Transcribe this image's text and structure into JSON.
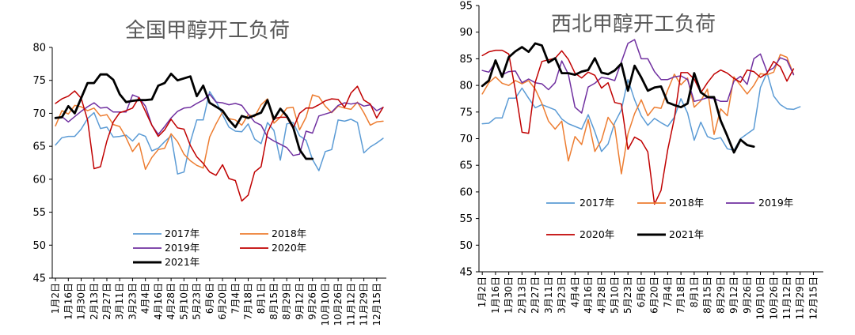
{
  "chart_data": [
    {
      "type": "line",
      "title": "全国甲醇开工负荷",
      "xlabel": "",
      "ylabel": "",
      "ylim": [
        45,
        80
      ],
      "yticks": [
        45,
        50,
        55,
        60,
        65,
        70,
        75,
        80
      ],
      "x_tick_labels": [
        "1月2日",
        "1月16日",
        "1月30日",
        "2月13日",
        "2月27日",
        "3月11日",
        "3月23日",
        "4月4日",
        "4月16日",
        "4月28日",
        "5月10日",
        "5月23日",
        "6月6日",
        "6月20日",
        "7月4日",
        "7月18日",
        "8月1日",
        "8月15日",
        "8月29日",
        "9月12日",
        "9月26日",
        "10月10日",
        "10月26日",
        "11月12日",
        "11月29日",
        "12月15日"
      ],
      "n_points": 52,
      "grid": false,
      "legend": "bottom-center",
      "series": [
        {
          "name": "2017年",
          "color": "#5b9bd5",
          "width": 1.5,
          "values": [
            65.2,
            66.3,
            66.5,
            66.5,
            67.6,
            69.2,
            70.1,
            67.7,
            67.9,
            66.4,
            66.5,
            66.7,
            65.8,
            66.9,
            66.5,
            64.3,
            64.7,
            65.7,
            66.6,
            60.8,
            61.1,
            65.7,
            69.0,
            69.0,
            73.3,
            71.8,
            69.8,
            67.9,
            67.3,
            67.2,
            68.4,
            66.1,
            65.4,
            68.6,
            67.4,
            62.9,
            68.4,
            68.6,
            66.6,
            65.9,
            63.0,
            61.3,
            64.2,
            64.5,
            69.0,
            68.8,
            69.1,
            68.6,
            64.0,
            64.9,
            65.5,
            66.2
          ]
        },
        {
          "name": "2018年",
          "color": "#ed7d31",
          "width": 1.5,
          "values": [
            68.1,
            70.4,
            69.9,
            71.2,
            71.0,
            70.4,
            70.8,
            69.6,
            69.8,
            68.3,
            68.0,
            66.3,
            64.2,
            65.5,
            61.5,
            63.3,
            64.5,
            64.7,
            66.9,
            65.7,
            63.8,
            62.8,
            62.1,
            61.7,
            66.4,
            68.4,
            70.2,
            69.2,
            69.0,
            68.2,
            69.8,
            69.5,
            71.3,
            72.2,
            68.5,
            69.4,
            70.8,
            70.9,
            67.5,
            69.4,
            72.8,
            72.5,
            71.1,
            70.1,
            71.1,
            70.8,
            70.6,
            71.7,
            70.1,
            68.2,
            68.7,
            68.8
          ]
        },
        {
          "name": "2019年",
          "color": "#7030a0",
          "width": 1.5,
          "values": [
            69.3,
            69.5,
            68.7,
            69.5,
            70.3,
            71.0,
            71.6,
            70.8,
            70.9,
            70.2,
            70.2,
            70.2,
            72.8,
            72.4,
            71.1,
            68.2,
            66.8,
            68.0,
            69.3,
            70.3,
            70.8,
            70.9,
            71.5,
            72.0,
            72.9,
            71.7,
            71.6,
            71.3,
            71.5,
            71.2,
            69.9,
            68.7,
            68.2,
            66.4,
            65.8,
            65.3,
            64.8,
            63.6,
            63.8,
            67.3,
            67.0,
            69.6,
            69.9,
            70.2,
            71.2,
            71.6,
            71.4,
            71.6,
            71.1,
            71.3,
            70.4,
            70.9
          ]
        },
        {
          "name": "2020年",
          "color": "#c00000",
          "width": 1.5,
          "values": [
            71.5,
            72.2,
            72.6,
            73.4,
            72.3,
            69.0,
            61.6,
            61.9,
            65.8,
            68.7,
            70.1,
            70.4,
            70.8,
            72.4,
            70.3,
            68.2,
            66.5,
            67.5,
            69.1,
            67.8,
            67.6,
            65.1,
            63.4,
            62.4,
            61.1,
            60.6,
            62.2,
            60.1,
            59.8,
            56.7,
            57.6,
            61.1,
            61.9,
            67.1,
            69.2,
            69.4,
            69.4,
            67.7,
            70.0,
            70.8,
            70.8,
            71.3,
            71.9,
            72.2,
            72.1,
            70.9,
            73.1,
            74.1,
            72.0,
            71.4,
            69.3,
            70.9
          ]
        },
        {
          "name": "2021年",
          "color": "#000000",
          "width": 2.8,
          "values": [
            69.3,
            69.4,
            71.1,
            70.0,
            72.3,
            74.6,
            74.6,
            75.9,
            75.9,
            75.1,
            72.9,
            71.7,
            71.9,
            72.0,
            72.0,
            72.1,
            74.2,
            74.6,
            76.0,
            75.0,
            75.3,
            75.6,
            72.6,
            74.2,
            71.6,
            71.0,
            70.4,
            69.0,
            67.9,
            69.6,
            69.3,
            69.7,
            70.1,
            72.0,
            69.1,
            70.7,
            69.6,
            67.9,
            64.5,
            63.1,
            63.1
          ]
        }
      ],
      "legend_entries": [
        "2017年",
        "2018年",
        "2019年",
        "2020年",
        "2021年"
      ]
    },
    {
      "type": "line",
      "title": "西北甲醇开工负荷",
      "xlabel": "",
      "ylabel": "",
      "ylim": [
        45,
        95
      ],
      "yticks": [
        45,
        50,
        55,
        60,
        65,
        70,
        75,
        80,
        85,
        90,
        95
      ],
      "x_tick_labels": [
        "1月2日",
        "1月16日",
        "1月30日",
        "2月13日",
        "2月27日",
        "3月11日",
        "3月23日",
        "4月4日",
        "4月16日",
        "4月28日",
        "5月10日",
        "5月23日",
        "6月6日",
        "6月20日",
        "7月4日",
        "7月18日",
        "8月1日",
        "8月15日",
        "8月29日",
        "9月12日",
        "9月26日",
        "10月10日",
        "10月26日",
        "11月12日",
        "11月29日",
        "12月15日"
      ],
      "n_points": 52,
      "grid": false,
      "legend": "bottom-center",
      "series": [
        {
          "name": "2017年",
          "color": "#5b9bd5",
          "width": 1.5,
          "values": [
            72.8,
            72.9,
            73.9,
            73.9,
            77.6,
            77.6,
            79.5,
            77.6,
            75.8,
            76.4,
            75.9,
            75.4,
            73.7,
            72.8,
            72.3,
            71.8,
            74.5,
            71.3,
            67.6,
            69.0,
            73.0,
            75.4,
            81.1,
            77.3,
            74.3,
            72.5,
            73.8,
            73.0,
            72.3,
            74.0,
            77.5,
            74.8,
            69.7,
            73.1,
            70.4,
            69.9,
            70.2,
            68.1,
            67.8,
            70.0,
            70.9,
            71.8,
            79.6,
            82.4,
            78.0,
            76.4,
            75.6,
            75.5,
            76.0
          ]
        },
        {
          "name": "2018年",
          "color": "#ed7d31",
          "width": 1.5,
          "values": [
            78.4,
            80.5,
            81.6,
            80.4,
            80.0,
            80.9,
            80.3,
            80.9,
            79.3,
            76.6,
            73.3,
            71.8,
            73.3,
            65.8,
            70.4,
            68.9,
            73.6,
            67.6,
            69.7,
            74.0,
            72.2,
            63.4,
            70.9,
            74.7,
            77.3,
            74.3,
            75.9,
            75.7,
            79.1,
            82.1,
            80.1,
            81.4,
            75.9,
            77.1,
            79.3,
            70.8,
            75.6,
            74.3,
            81.6,
            80.0,
            78.4,
            80.0,
            82.2,
            82.0,
            82.5,
            85.8,
            85.3,
            82.1
          ]
        },
        {
          "name": "2019年",
          "color": "#7030a0",
          "width": 1.5,
          "values": [
            82.8,
            82.5,
            84.4,
            82.0,
            82.6,
            82.7,
            80.5,
            81.2,
            80.5,
            80.3,
            79.2,
            80.5,
            84.6,
            82.1,
            75.9,
            74.8,
            79.7,
            80.4,
            81.5,
            81.3,
            80.9,
            84.4,
            87.9,
            88.6,
            85.0,
            85.0,
            82.6,
            81.1,
            81.1,
            81.6,
            81.8,
            81.1,
            77.0,
            77.3,
            77.7,
            77.5,
            77.0,
            77.0,
            80.8,
            81.7,
            80.2,
            85.0,
            85.9,
            82.6,
            83.3,
            85.2,
            84.7,
            82.0
          ]
        },
        {
          "name": "2020年",
          "color": "#c00000",
          "width": 1.5,
          "values": [
            85.6,
            86.3,
            86.6,
            86.6,
            85.9,
            79.1,
            71.2,
            71.0,
            80.6,
            84.5,
            84.8,
            85.1,
            86.5,
            84.9,
            82.3,
            81.4,
            82.5,
            81.9,
            79.5,
            80.5,
            76.8,
            76.5,
            68.0,
            70.3,
            69.6,
            67.5,
            57.7,
            60.3,
            67.9,
            73.8,
            82.4,
            82.4,
            81.2,
            78.6,
            80.5,
            82.1,
            82.9,
            82.3,
            81.3,
            80.6,
            82.9,
            82.6,
            81.5,
            82.3,
            84.5,
            83.5,
            80.8,
            83.1
          ]
        },
        {
          "name": "2021年",
          "color": "#000000",
          "width": 2.8,
          "values": [
            79.9,
            80.9,
            84.7,
            81.6,
            85.3,
            86.4,
            87.2,
            86.3,
            87.9,
            87.5,
            84.3,
            85.1,
            82.3,
            82.3,
            82.0,
            82.6,
            82.9,
            85.1,
            82.4,
            82.1,
            82.8,
            84.1,
            79.0,
            83.7,
            81.5,
            79.0,
            79.6,
            79.8,
            76.8,
            76.3,
            75.9,
            76.6,
            82.3,
            78.7,
            77.8,
            77.8,
            73.4,
            70.5,
            67.4,
            69.8,
            68.8,
            68.5
          ]
        }
      ],
      "legend_entries": [
        "2017年",
        "2018年",
        "2019年",
        "2020年",
        "2021年"
      ]
    }
  ]
}
